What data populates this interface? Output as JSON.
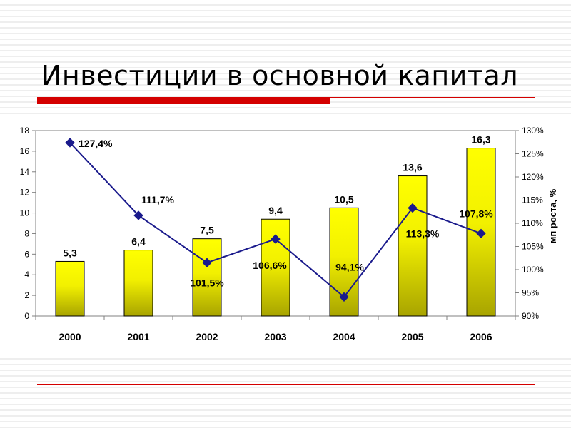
{
  "slide": {
    "title": "Инвестиции в основной капитал"
  },
  "chart_data": {
    "type": "bar",
    "categories": [
      "2000",
      "2001",
      "2002",
      "2003",
      "2004",
      "2005",
      "2006"
    ],
    "series": [
      {
        "type": "bar",
        "axis": "left",
        "values": [
          5.3,
          6.4,
          7.5,
          9.4,
          10.5,
          13.6,
          16.3
        ],
        "value_labels": [
          "5,3",
          "6,4",
          "7,5",
          "9,4",
          "10,5",
          "13,6",
          "16,3"
        ],
        "color": "#ffff00"
      },
      {
        "type": "line",
        "axis": "right",
        "values": [
          127.4,
          111.7,
          101.5,
          106.6,
          94.1,
          113.3,
          107.8
        ],
        "value_labels": [
          "127,4%",
          "111,7%",
          "101,5%",
          "106,6%",
          "94,1%",
          "113,3%",
          "107,8%"
        ],
        "color": "#1a1a8c"
      }
    ],
    "y_left": {
      "lim": [
        0,
        18
      ],
      "ticks": [
        "0",
        "2",
        "4",
        "6",
        "8",
        "10",
        "12",
        "14",
        "16",
        "18"
      ],
      "label": ""
    },
    "y_right": {
      "lim": [
        90,
        130
      ],
      "ticks": [
        "90%",
        "95%",
        "100%",
        "105%",
        "110%",
        "115%",
        "120%",
        "125%",
        "130%"
      ],
      "label": "мп роста, %"
    },
    "grid": false,
    "legend": "none"
  }
}
